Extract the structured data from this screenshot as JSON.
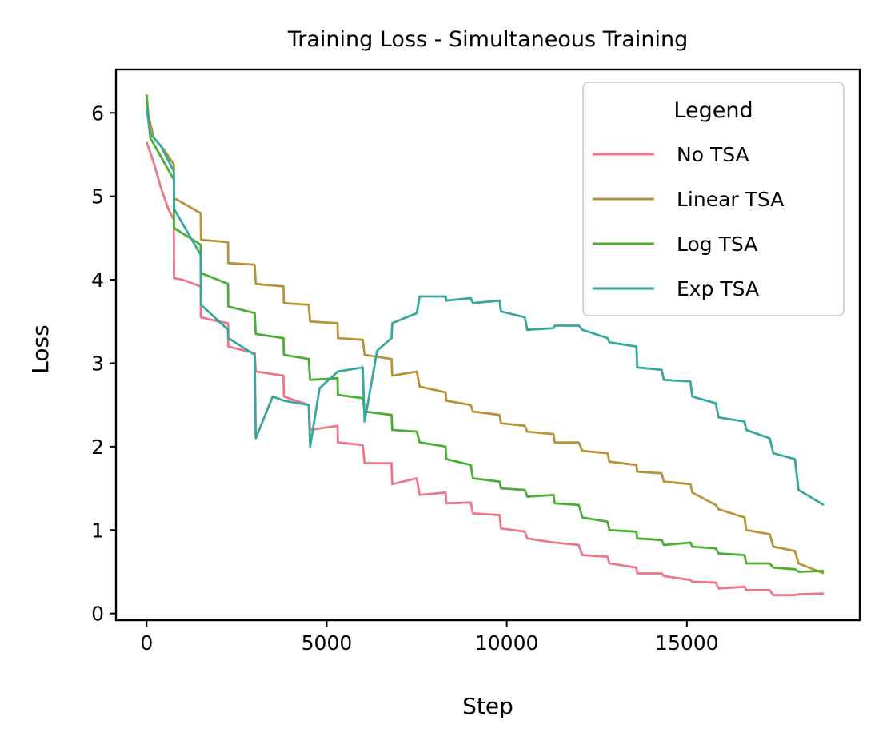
{
  "chart_data": {
    "type": "line",
    "title": "Training Loss - Simultaneous Training",
    "xlabel": "Step",
    "ylabel": "Loss",
    "xlim": [
      -850,
      19800
    ],
    "ylim": [
      -0.08,
      6.52
    ],
    "xticks": [
      0,
      5000,
      10000,
      15000
    ],
    "xtick_labels": [
      "0",
      "5000",
      "10000",
      "15000"
    ],
    "yticks": [
      0,
      1,
      2,
      3,
      4,
      5,
      6
    ],
    "ytick_labels": [
      "0",
      "1",
      "2",
      "3",
      "4",
      "5",
      "6"
    ],
    "grid": false,
    "legend": {
      "title": "Legend",
      "position": "top-right"
    },
    "series": [
      {
        "name": "No TSA",
        "color": "#f0758a",
        "points": [
          [
            0,
            5.65
          ],
          [
            200,
            5.4
          ],
          [
            400,
            5.1
          ],
          [
            600,
            4.85
          ],
          [
            755,
            4.72
          ],
          [
            760,
            4.02
          ],
          [
            1000,
            4.0
          ],
          [
            1500,
            3.92
          ],
          [
            1505,
            3.55
          ],
          [
            2000,
            3.5
          ],
          [
            2260,
            3.48
          ],
          [
            2265,
            3.2
          ],
          [
            3000,
            3.12
          ],
          [
            3030,
            2.9
          ],
          [
            3800,
            2.85
          ],
          [
            3810,
            2.6
          ],
          [
            4500,
            2.5
          ],
          [
            4540,
            2.2
          ],
          [
            5300,
            2.25
          ],
          [
            5310,
            2.05
          ],
          [
            6000,
            2.02
          ],
          [
            6050,
            1.8
          ],
          [
            6800,
            1.8
          ],
          [
            6820,
            1.55
          ],
          [
            7500,
            1.62
          ],
          [
            7580,
            1.42
          ],
          [
            8300,
            1.45
          ],
          [
            8320,
            1.32
          ],
          [
            9000,
            1.33
          ],
          [
            9060,
            1.2
          ],
          [
            9800,
            1.18
          ],
          [
            9840,
            1.02
          ],
          [
            10500,
            0.98
          ],
          [
            10570,
            0.9
          ],
          [
            11300,
            0.85
          ],
          [
            11330,
            0.85
          ],
          [
            12000,
            0.82
          ],
          [
            12100,
            0.7
          ],
          [
            12800,
            0.68
          ],
          [
            12850,
            0.6
          ],
          [
            13600,
            0.55
          ],
          [
            13620,
            0.48
          ],
          [
            14300,
            0.48
          ],
          [
            14360,
            0.45
          ],
          [
            15100,
            0.4
          ],
          [
            15150,
            0.38
          ],
          [
            15800,
            0.37
          ],
          [
            15880,
            0.3
          ],
          [
            16600,
            0.32
          ],
          [
            16650,
            0.28
          ],
          [
            17300,
            0.28
          ],
          [
            17400,
            0.22
          ],
          [
            18000,
            0.22
          ],
          [
            18100,
            0.23
          ],
          [
            18800,
            0.24
          ]
        ]
      },
      {
        "name": "Linear TSA",
        "color": "#b5943a",
        "points": [
          [
            0,
            6.05
          ],
          [
            200,
            5.7
          ],
          [
            500,
            5.55
          ],
          [
            755,
            5.38
          ],
          [
            760,
            4.98
          ],
          [
            1500,
            4.8
          ],
          [
            1510,
            4.48
          ],
          [
            2260,
            4.45
          ],
          [
            2265,
            4.2
          ],
          [
            3000,
            4.18
          ],
          [
            3030,
            3.95
          ],
          [
            3800,
            3.92
          ],
          [
            3810,
            3.72
          ],
          [
            4500,
            3.7
          ],
          [
            4540,
            3.5
          ],
          [
            5300,
            3.48
          ],
          [
            5310,
            3.3
          ],
          [
            6000,
            3.28
          ],
          [
            6050,
            3.1
          ],
          [
            6800,
            3.05
          ],
          [
            6820,
            2.85
          ],
          [
            7500,
            2.9
          ],
          [
            7580,
            2.72
          ],
          [
            8300,
            2.65
          ],
          [
            8320,
            2.55
          ],
          [
            9000,
            2.5
          ],
          [
            9060,
            2.42
          ],
          [
            9800,
            2.38
          ],
          [
            9840,
            2.28
          ],
          [
            10500,
            2.25
          ],
          [
            10570,
            2.18
          ],
          [
            11300,
            2.15
          ],
          [
            11330,
            2.05
          ],
          [
            12000,
            2.05
          ],
          [
            12100,
            1.95
          ],
          [
            12800,
            1.92
          ],
          [
            12850,
            1.82
          ],
          [
            13600,
            1.78
          ],
          [
            13620,
            1.7
          ],
          [
            14300,
            1.68
          ],
          [
            14360,
            1.58
          ],
          [
            15100,
            1.55
          ],
          [
            15150,
            1.45
          ],
          [
            15800,
            1.3
          ],
          [
            15880,
            1.25
          ],
          [
            16600,
            1.15
          ],
          [
            16650,
            1.0
          ],
          [
            17300,
            0.95
          ],
          [
            17400,
            0.8
          ],
          [
            18000,
            0.75
          ],
          [
            18100,
            0.6
          ],
          [
            18800,
            0.48
          ]
        ]
      },
      {
        "name": "Log TSA",
        "color": "#4cae32",
        "points": [
          [
            0,
            6.22
          ],
          [
            100,
            5.7
          ],
          [
            300,
            5.55
          ],
          [
            755,
            5.2
          ],
          [
            760,
            4.62
          ],
          [
            1500,
            4.42
          ],
          [
            1510,
            4.08
          ],
          [
            2260,
            3.95
          ],
          [
            2265,
            3.68
          ],
          [
            3000,
            3.6
          ],
          [
            3030,
            3.35
          ],
          [
            3800,
            3.3
          ],
          [
            3810,
            3.1
          ],
          [
            4500,
            3.05
          ],
          [
            4540,
            2.8
          ],
          [
            5300,
            2.82
          ],
          [
            5310,
            2.62
          ],
          [
            6000,
            2.58
          ],
          [
            6050,
            2.42
          ],
          [
            6800,
            2.38
          ],
          [
            6820,
            2.2
          ],
          [
            7500,
            2.18
          ],
          [
            7580,
            2.05
          ],
          [
            8300,
            2.0
          ],
          [
            8320,
            1.85
          ],
          [
            9000,
            1.78
          ],
          [
            9060,
            1.62
          ],
          [
            9800,
            1.58
          ],
          [
            9840,
            1.5
          ],
          [
            10500,
            1.48
          ],
          [
            10570,
            1.4
          ],
          [
            11300,
            1.42
          ],
          [
            11330,
            1.32
          ],
          [
            12000,
            1.3
          ],
          [
            12100,
            1.15
          ],
          [
            12800,
            1.1
          ],
          [
            12850,
            1.0
          ],
          [
            13600,
            0.98
          ],
          [
            13620,
            0.9
          ],
          [
            14300,
            0.88
          ],
          [
            14360,
            0.82
          ],
          [
            15100,
            0.85
          ],
          [
            15150,
            0.8
          ],
          [
            15800,
            0.78
          ],
          [
            15880,
            0.72
          ],
          [
            16600,
            0.7
          ],
          [
            16650,
            0.6
          ],
          [
            17300,
            0.6
          ],
          [
            17400,
            0.55
          ],
          [
            18000,
            0.53
          ],
          [
            18100,
            0.5
          ],
          [
            18800,
            0.51
          ]
        ]
      },
      {
        "name": "Exp TSA",
        "color": "#36a89d",
        "points": [
          [
            0,
            6.05
          ],
          [
            100,
            5.75
          ],
          [
            400,
            5.6
          ],
          [
            755,
            5.3
          ],
          [
            760,
            4.85
          ],
          [
            1500,
            4.3
          ],
          [
            1510,
            3.7
          ],
          [
            2260,
            3.4
          ],
          [
            2265,
            3.3
          ],
          [
            3000,
            3.1
          ],
          [
            3030,
            2.1
          ],
          [
            3500,
            2.6
          ],
          [
            3810,
            2.55
          ],
          [
            4500,
            2.5
          ],
          [
            4540,
            2.0
          ],
          [
            4800,
            2.7
          ],
          [
            5310,
            2.9
          ],
          [
            6000,
            2.95
          ],
          [
            6050,
            2.3
          ],
          [
            6400,
            3.15
          ],
          [
            6800,
            3.3
          ],
          [
            6820,
            3.48
          ],
          [
            7500,
            3.6
          ],
          [
            7580,
            3.8
          ],
          [
            8300,
            3.8
          ],
          [
            8320,
            3.75
          ],
          [
            9000,
            3.78
          ],
          [
            9060,
            3.72
          ],
          [
            9800,
            3.75
          ],
          [
            9840,
            3.62
          ],
          [
            10500,
            3.55
          ],
          [
            10570,
            3.4
          ],
          [
            11300,
            3.42
          ],
          [
            11330,
            3.45
          ],
          [
            12000,
            3.45
          ],
          [
            12100,
            3.4
          ],
          [
            12800,
            3.3
          ],
          [
            12850,
            3.25
          ],
          [
            13600,
            3.2
          ],
          [
            13620,
            2.95
          ],
          [
            14300,
            2.92
          ],
          [
            14360,
            2.8
          ],
          [
            15100,
            2.78
          ],
          [
            15150,
            2.6
          ],
          [
            15800,
            2.52
          ],
          [
            15880,
            2.35
          ],
          [
            16600,
            2.3
          ],
          [
            16650,
            2.2
          ],
          [
            17300,
            2.1
          ],
          [
            17400,
            1.92
          ],
          [
            18000,
            1.85
          ],
          [
            18100,
            1.48
          ],
          [
            18800,
            1.3
          ]
        ]
      }
    ]
  }
}
